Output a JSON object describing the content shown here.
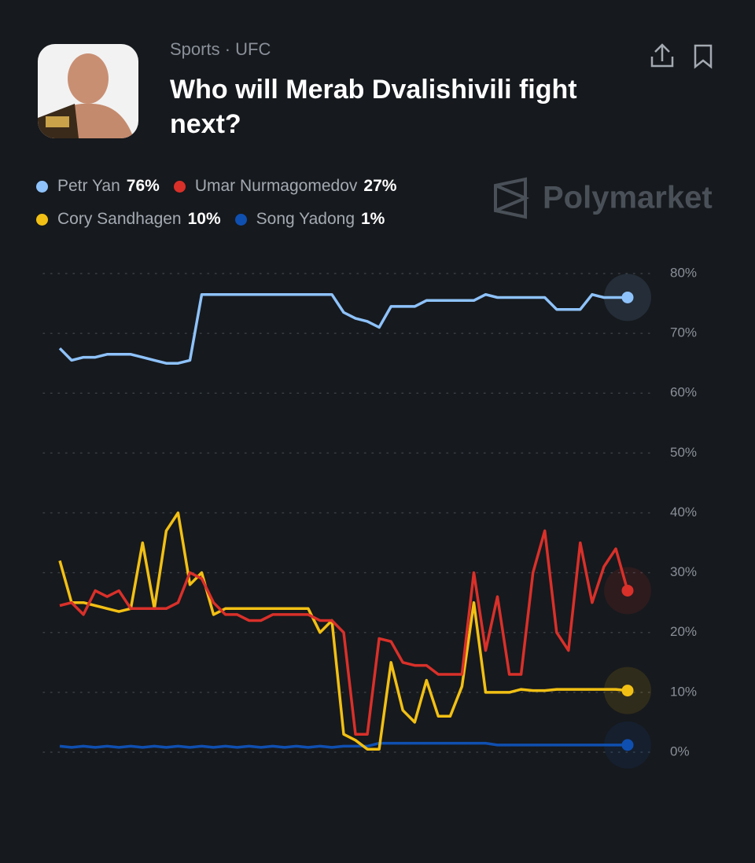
{
  "header": {
    "category": "Sports · UFC",
    "title": "Who will Merab Dvalishivili fight next?",
    "brand": "Polymarket"
  },
  "chart_data": {
    "type": "line",
    "ylim": [
      -1,
      81
    ],
    "yticks": [
      {
        "value": 80,
        "label": "80%"
      },
      {
        "value": 70,
        "label": "70%"
      },
      {
        "value": 60,
        "label": "60%"
      },
      {
        "value": 50,
        "label": "50%"
      },
      {
        "value": 40,
        "label": "40%"
      },
      {
        "value": 30,
        "label": "30%"
      },
      {
        "value": 20,
        "label": "20%"
      },
      {
        "value": 10,
        "label": "10%"
      },
      {
        "value": 0,
        "label": "0%"
      }
    ],
    "grid": true,
    "series": [
      {
        "name": "Petr Yan",
        "color": "#8ec2fb",
        "legend_value": 76,
        "legend_label": "76%",
        "values": [
          67.5,
          65.5,
          66,
          66,
          66.5,
          66.5,
          66.5,
          66,
          65.5,
          65,
          65,
          65.5,
          76.5,
          76.5,
          76.5,
          76.5,
          76.5,
          76.5,
          76.5,
          76.5,
          76.5,
          76.5,
          76.5,
          76.5,
          73.5,
          72.5,
          72,
          71,
          74.5,
          74.5,
          74.5,
          75.5,
          75.5,
          75.5,
          75.5,
          75.5,
          76.5,
          76,
          76,
          76,
          76,
          76,
          74,
          74,
          74,
          76.5,
          76,
          76,
          76
        ]
      },
      {
        "name": "Umar Nurmagomedov",
        "color": "#d9302a",
        "legend_value": 27,
        "legend_label": "27%",
        "values": [
          24.5,
          25,
          23,
          27,
          26,
          27,
          24,
          24,
          24,
          24,
          25,
          30,
          29,
          25,
          23,
          23,
          22,
          22,
          23,
          23,
          23,
          23,
          22,
          22,
          20,
          3,
          3,
          19,
          18.5,
          15,
          14.5,
          14.5,
          13,
          13,
          13,
          30,
          17,
          26,
          13,
          13,
          30,
          37,
          20,
          17,
          35,
          25,
          31,
          34,
          27
        ]
      },
      {
        "name": "Cory Sandhagen",
        "color": "#f2c014",
        "legend_value": 10,
        "legend_label": "10%",
        "values": [
          32,
          25,
          25,
          24.5,
          24,
          23.5,
          24,
          35,
          24,
          37,
          40,
          28,
          30,
          23,
          24,
          24,
          24,
          24,
          24,
          24,
          24,
          24,
          20,
          22,
          3,
          2,
          0.5,
          0.5,
          15,
          7,
          5,
          12,
          6,
          6,
          11,
          25,
          10,
          10,
          10,
          10.5,
          10.3,
          10.3,
          10.5,
          10.5,
          10.5,
          10.5,
          10.5,
          10.5,
          10.3
        ]
      },
      {
        "name": "Song Yadong",
        "color": "#0f4fb0",
        "legend_value": 1,
        "legend_label": "1%",
        "values": [
          1,
          0.8,
          1,
          0.8,
          1,
          0.8,
          1,
          0.8,
          1,
          0.8,
          1,
          0.8,
          1,
          0.8,
          1,
          0.8,
          1,
          0.8,
          1,
          0.8,
          1,
          0.8,
          1,
          0.8,
          1,
          1,
          1,
          1.5,
          1.5,
          1.5,
          1.5,
          1.5,
          1.5,
          1.5,
          1.5,
          1.5,
          1.5,
          1.2,
          1.2,
          1.2,
          1.2,
          1.2,
          1.2,
          1.2,
          1.2,
          1.2,
          1.2,
          1.2,
          1.2
        ]
      }
    ]
  }
}
